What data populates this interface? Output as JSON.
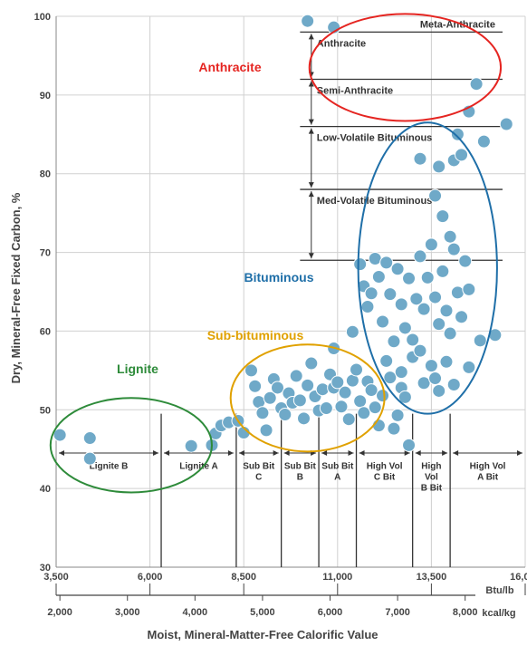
{
  "chart_data": {
    "type": "scatter",
    "title": "",
    "ylabel": "Dry, Mineral-Free Fixed Carbon, %",
    "xlabel": "Moist, Mineral-Matter-Free Calorific Value",
    "ylim": [
      30,
      100
    ],
    "yticks": [
      "30",
      "40",
      "50",
      "60",
      "70",
      "80",
      "90",
      "100"
    ],
    "xlim_btu": [
      3500,
      16000
    ],
    "x_unit": "Btu/lb",
    "x2_unit": "kcal/kg",
    "xticks_btu": [
      {
        "v": 3500,
        "label": "3,500"
      },
      {
        "v": 6000,
        "label": "6,000"
      },
      {
        "v": 8500,
        "label": "8,500"
      },
      {
        "v": 11000,
        "label": "11,000"
      },
      {
        "v": 13500,
        "label": "13,500"
      },
      {
        "v": 16000,
        "label": "16,000"
      }
    ],
    "xticks_kcal": [
      {
        "v": 2000,
        "label": "2,000"
      },
      {
        "v": 3000,
        "label": "3,000"
      },
      {
        "v": 4000,
        "label": "4,000"
      },
      {
        "v": 5000,
        "label": "5,000"
      },
      {
        "v": 6000,
        "label": "6,000"
      },
      {
        "v": 7000,
        "label": "7,000"
      },
      {
        "v": 8000,
        "label": "8,000"
      }
    ],
    "rank_bands": [
      {
        "label": [
          "Lignite B"
        ],
        "from": 3500,
        "to": 6300
      },
      {
        "label": [
          "Lignite A"
        ],
        "from": 6300,
        "to": 8300
      },
      {
        "label": [
          "Sub Bit",
          "C"
        ],
        "from": 8300,
        "to": 9500
      },
      {
        "label": [
          "Sub Bit",
          "B"
        ],
        "from": 9500,
        "to": 10500
      },
      {
        "label": [
          "Sub Bit",
          "A"
        ],
        "from": 10500,
        "to": 11500
      },
      {
        "label": [
          "High Vol",
          "C Bit"
        ],
        "from": 11500,
        "to": 13000
      },
      {
        "label": [
          "High",
          "Vol",
          "B Bit"
        ],
        "from": 13000,
        "to": 14000
      },
      {
        "label": [
          "High Vol",
          "A Bit"
        ],
        "from": 14000,
        "to": 16000
      }
    ],
    "fixed_carbon_classes": [
      {
        "label": "Meta-Anthracite",
        "from": 98,
        "to": 100
      },
      {
        "label": "Anthracite",
        "from": 92,
        "to": 98
      },
      {
        "label": "Semi-Anthracite",
        "from": 86,
        "to": 92
      },
      {
        "label": "Low-Volatile Bituminous",
        "from": 78,
        "to": 86
      },
      {
        "label": "Med-Volatile Bituminous",
        "from": 69,
        "to": 78
      }
    ],
    "groups": [
      {
        "label": "Anthracite",
        "color": "#e52521"
      },
      {
        "label": "Bituminous",
        "color": "#1f6fa8"
      },
      {
        "label": "Sub-bituminous",
        "color": "#e0a100"
      },
      {
        "label": "Lignite",
        "color": "#2e8b3a"
      }
    ],
    "marker_color": "#6fa9c8",
    "points": [
      [
        3600,
        46.8
      ],
      [
        4400,
        46.4
      ],
      [
        4400,
        43.8
      ],
      [
        7100,
        45.4
      ],
      [
        7650,
        45.5
      ],
      [
        7750,
        47.0
      ],
      [
        7900,
        48.0
      ],
      [
        8100,
        48.4
      ],
      [
        8350,
        48.6
      ],
      [
        8500,
        47.1
      ],
      [
        8700,
        55.0
      ],
      [
        8800,
        53.0
      ],
      [
        8900,
        51.0
      ],
      [
        9000,
        49.6
      ],
      [
        9100,
        47.4
      ],
      [
        9200,
        51.5
      ],
      [
        9300,
        53.9
      ],
      [
        9400,
        52.8
      ],
      [
        9500,
        50.2
      ],
      [
        9600,
        49.4
      ],
      [
        9700,
        52.1
      ],
      [
        9800,
        50.9
      ],
      [
        9900,
        54.3
      ],
      [
        10000,
        51.2
      ],
      [
        10100,
        48.9
      ],
      [
        10200,
        53.1
      ],
      [
        10300,
        55.9
      ],
      [
        10400,
        51.7
      ],
      [
        10500,
        49.9
      ],
      [
        10600,
        52.6
      ],
      [
        10700,
        50.2
      ],
      [
        10800,
        54.5
      ],
      [
        10900,
        52.8
      ],
      [
        11000,
        53.5
      ],
      [
        11100,
        50.4
      ],
      [
        11200,
        52.2
      ],
      [
        11300,
        48.8
      ],
      [
        11400,
        53.7
      ],
      [
        11500,
        55.1
      ],
      [
        11600,
        51.1
      ],
      [
        11700,
        49.6
      ],
      [
        11800,
        53.6
      ],
      [
        11900,
        52.5
      ],
      [
        12000,
        50.3
      ],
      [
        12100,
        48.0
      ],
      [
        12200,
        51.8
      ],
      [
        12300,
        56.2
      ],
      [
        12400,
        54.1
      ],
      [
        12500,
        47.6
      ],
      [
        12600,
        49.3
      ],
      [
        12700,
        52.8
      ],
      [
        12800,
        51.6
      ],
      [
        12900,
        45.5
      ],
      [
        10900,
        57.8
      ],
      [
        11400,
        59.9
      ],
      [
        11600,
        68.5
      ],
      [
        11700,
        65.7
      ],
      [
        11800,
        63.1
      ],
      [
        11900,
        64.8
      ],
      [
        12000,
        69.2
      ],
      [
        12100,
        66.9
      ],
      [
        12200,
        61.2
      ],
      [
        12300,
        68.7
      ],
      [
        12400,
        64.7
      ],
      [
        12500,
        58.7
      ],
      [
        12600,
        67.9
      ],
      [
        12700,
        63.4
      ],
      [
        12800,
        60.4
      ],
      [
        12900,
        66.7
      ],
      [
        13000,
        58.9
      ],
      [
        13100,
        64.1
      ],
      [
        13200,
        69.5
      ],
      [
        13300,
        62.8
      ],
      [
        13400,
        66.8
      ],
      [
        13500,
        71.0
      ],
      [
        13600,
        64.3
      ],
      [
        13700,
        60.9
      ],
      [
        13800,
        67.6
      ],
      [
        13900,
        62.6
      ],
      [
        14000,
        59.7
      ],
      [
        14100,
        70.4
      ],
      [
        14200,
        64.9
      ],
      [
        14300,
        61.8
      ],
      [
        14400,
        68.9
      ],
      [
        14500,
        65.3
      ],
      [
        12700,
        54.8
      ],
      [
        13000,
        56.7
      ],
      [
        13200,
        57.5
      ],
      [
        13300,
        53.4
      ],
      [
        13500,
        55.6
      ],
      [
        13600,
        54.0
      ],
      [
        13700,
        52.4
      ],
      [
        13900,
        56.1
      ],
      [
        14100,
        53.2
      ],
      [
        14500,
        55.4
      ],
      [
        14800,
        58.8
      ],
      [
        15200,
        59.5
      ],
      [
        13800,
        74.6
      ],
      [
        13600,
        77.2
      ],
      [
        14000,
        72.0
      ],
      [
        13200,
        81.9
      ],
      [
        13700,
        80.9
      ],
      [
        14100,
        81.7
      ],
      [
        14300,
        82.4
      ],
      [
        14900,
        84.1
      ],
      [
        15500,
        86.3
      ],
      [
        14200,
        85.0
      ],
      [
        14500,
        87.9
      ],
      [
        14700,
        91.4
      ],
      [
        10200,
        99.4
      ],
      [
        10900,
        98.6
      ]
    ]
  },
  "annotations": {
    "anthracite": "Anthracite",
    "bituminous": "Bituminous",
    "sub_bituminous": "Sub-bituminous",
    "lignite": "Lignite"
  }
}
